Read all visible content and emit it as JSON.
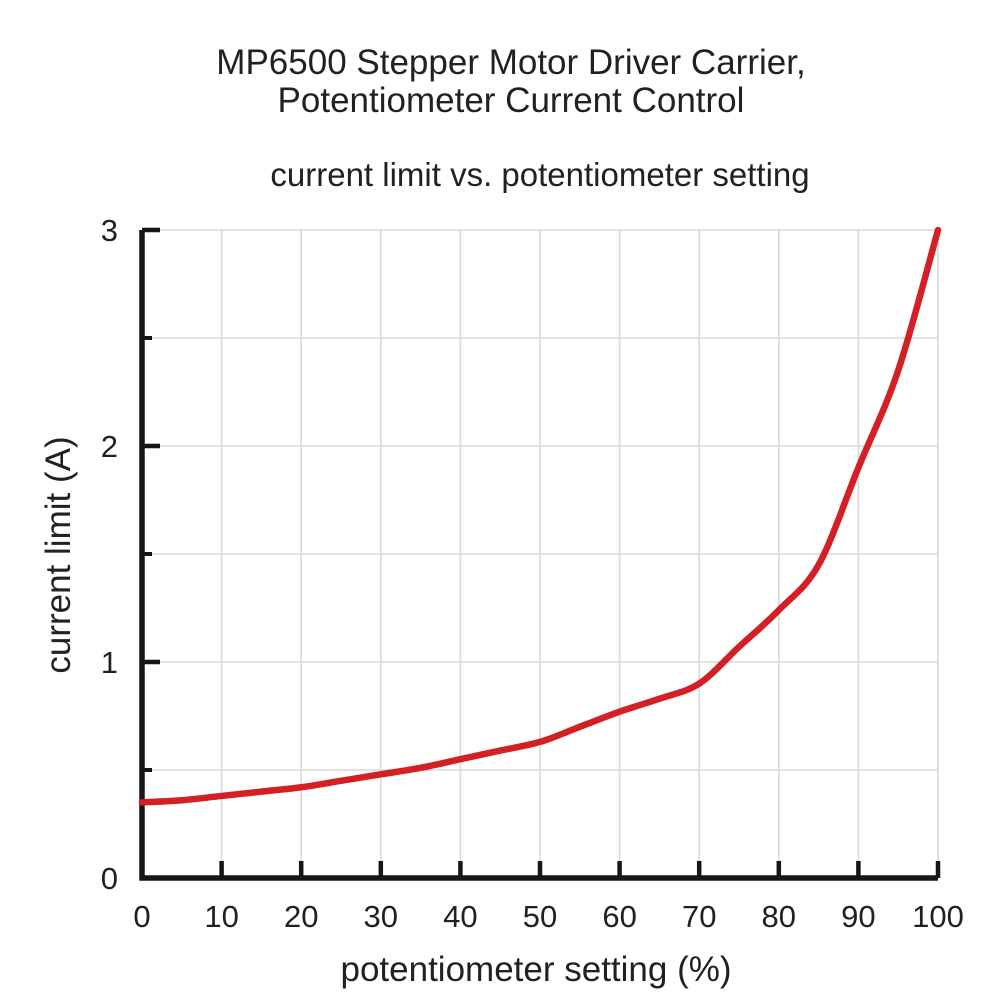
{
  "chart_data": {
    "type": "line",
    "title_line1": "MP6500 Stepper Motor Driver Carrier,",
    "title_line2": "Potentiometer Current Control",
    "subtitle": "current limit vs. potentiometer setting",
    "xlabel": "potentiometer setting (%)",
    "ylabel": "current limit (A)",
    "xlim": [
      0,
      100
    ],
    "ylim": [
      0,
      3
    ],
    "x_ticks": [
      0,
      10,
      20,
      30,
      40,
      50,
      60,
      70,
      80,
      90,
      100
    ],
    "y_ticks": [
      0,
      1,
      2,
      3
    ],
    "y_minor_ticks": [
      0.5,
      1.5,
      2.5
    ],
    "grid": {
      "on": true,
      "x_step": 10,
      "y_step": 0.5
    },
    "legend": "none",
    "colors": {
      "curve": "#d41f24",
      "axis": "#161616",
      "grid": "#d9d9d9",
      "text": "#212121",
      "background": "#ffffff"
    },
    "series": [
      {
        "name": "current limit",
        "x": [
          0,
          5,
          10,
          15,
          20,
          25,
          30,
          35,
          40,
          45,
          50,
          55,
          60,
          65,
          70,
          75,
          80,
          85,
          90,
          95,
          100
        ],
        "y": [
          0.35,
          0.36,
          0.38,
          0.4,
          0.42,
          0.45,
          0.48,
          0.51,
          0.55,
          0.59,
          0.63,
          0.7,
          0.77,
          0.83,
          0.9,
          1.07,
          1.24,
          1.45,
          1.9,
          2.35,
          3.0
        ]
      }
    ]
  }
}
